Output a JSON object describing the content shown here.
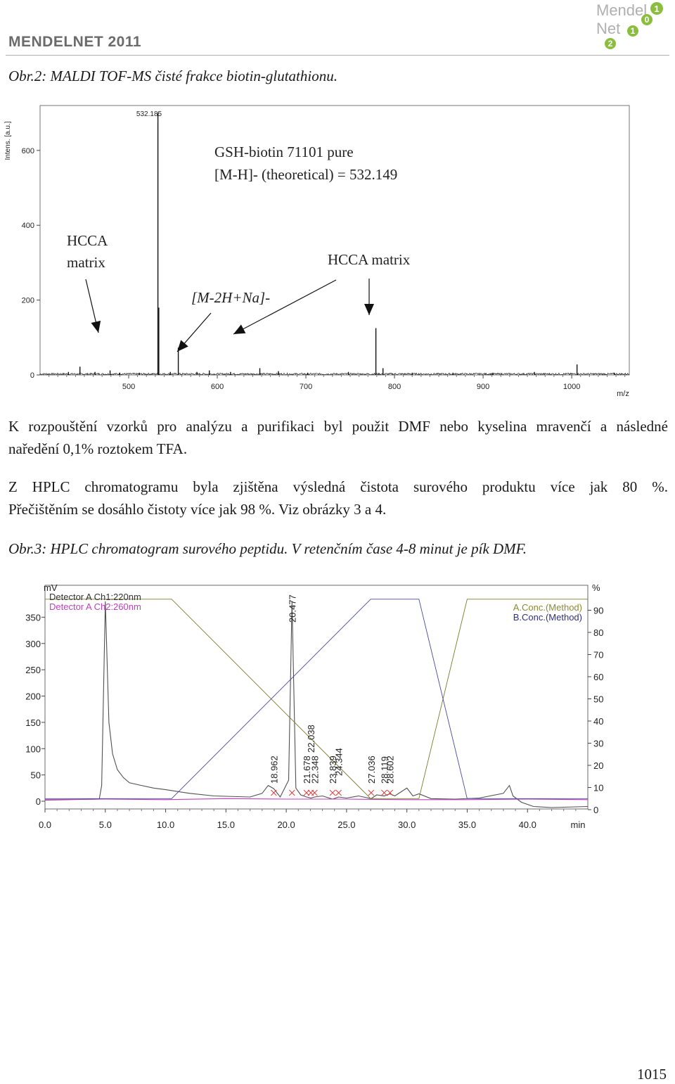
{
  "header": {
    "journal_title": "MENDELNET 2011",
    "logo_text_top": "Mendel",
    "logo_text_bottom": "Net",
    "logo_digits": [
      "1",
      "0",
      "1",
      "2"
    ]
  },
  "figure2": {
    "caption": "Obr.2: MALDI TOF-MS čisté frakce biotin-glutathionu."
  },
  "chart_data": [
    {
      "type": "line",
      "title": "",
      "ylabel": "Intens. [a.u.]",
      "xlabel": "m/z",
      "xlim": [
        400,
        1065
      ],
      "ylim": [
        0,
        720
      ],
      "x_ticks": [
        500,
        600,
        700,
        800,
        900,
        1000
      ],
      "y_ticks": [
        0,
        200,
        400,
        600
      ],
      "grid": false,
      "peak_label": "532.185",
      "annotation_title_1": "GSH-biotin 71101 pure",
      "annotation_title_2": "[M-H]- (theoretical) = 532.149",
      "annotation_hcca_left_1": "HCCA",
      "annotation_hcca_left_2": "matrix",
      "annotation_hcca_right": "HCCA matrix",
      "annotation_adduct": "[M-2H+Na]-",
      "peaks": [
        {
          "x": 432,
          "y": 8
        },
        {
          "x": 445,
          "y": 22
        },
        {
          "x": 462,
          "y": 8
        },
        {
          "x": 479,
          "y": 12
        },
        {
          "x": 490,
          "y": 6
        },
        {
          "x": 512,
          "y": 6
        },
        {
          "x": 533,
          "y": 700
        },
        {
          "x": 534,
          "y": 180
        },
        {
          "x": 547,
          "y": 8
        },
        {
          "x": 556,
          "y": 73
        },
        {
          "x": 577,
          "y": 8
        },
        {
          "x": 591,
          "y": 12
        },
        {
          "x": 615,
          "y": 8
        },
        {
          "x": 648,
          "y": 18
        },
        {
          "x": 669,
          "y": 10
        },
        {
          "x": 702,
          "y": 6
        },
        {
          "x": 748,
          "y": 8
        },
        {
          "x": 779,
          "y": 125
        },
        {
          "x": 787,
          "y": 18
        },
        {
          "x": 820,
          "y": 6
        },
        {
          "x": 866,
          "y": 6
        },
        {
          "x": 911,
          "y": 6
        },
        {
          "x": 958,
          "y": 8
        },
        {
          "x": 1006,
          "y": 28
        },
        {
          "x": 1048,
          "y": 6
        }
      ]
    },
    {
      "type": "line",
      "title": "",
      "ylabel_left": "mV",
      "ylabel_right": "%",
      "xlabel": "min",
      "xlim": [
        0,
        45
      ],
      "ylim_left": [
        -15,
        380
      ],
      "ylim_right": [
        0,
        100
      ],
      "x_ticks": [
        0.0,
        5.0,
        10.0,
        15.0,
        20.0,
        25.0,
        30.0,
        35.0,
        40.0
      ],
      "x_tick_labels": [
        "0.0",
        "5.0",
        "10.0",
        "15.0",
        "20.0",
        "25.0",
        "30.0",
        "35.0",
        "40.0"
      ],
      "y_ticks_left": [
        0,
        50,
        100,
        150,
        200,
        250,
        300,
        350
      ],
      "y_ticks_right": [
        0,
        10,
        20,
        30,
        40,
        50,
        60,
        70,
        80,
        90
      ],
      "grid": false,
      "legend_left": [
        "Detector A Ch1:220nm",
        "Detector A Ch2:260nm"
      ],
      "legend_right": [
        "A.Conc.(Method)",
        "B.Conc.(Method)"
      ],
      "series": [
        {
          "name": "Detector A Ch1:220nm",
          "color": "#505050",
          "x": [
            0,
            4.5,
            4.7,
            5.0,
            5.3,
            5.6,
            6.0,
            6.5,
            7.0,
            8.0,
            9.0,
            10.0,
            12.0,
            14.0,
            17.0,
            18.0,
            18.5,
            18.962,
            19.5,
            20.2,
            20.477,
            20.8,
            21.2,
            21.678,
            22.038,
            22.348,
            23.0,
            23.839,
            24.344,
            25.0,
            26.0,
            27.036,
            27.5,
            28.119,
            28.6,
            29.0,
            30.0,
            30.5,
            31.0,
            32.0,
            34.0,
            36.0,
            38.0,
            38.5,
            38.8,
            39.5,
            40.5,
            42.0,
            45.0
          ],
          "y": [
            2,
            4,
            30,
            380,
            150,
            90,
            60,
            45,
            35,
            30,
            25,
            22,
            15,
            10,
            8,
            15,
            30,
            24,
            8,
            40,
            380,
            25,
            12,
            8,
            6,
            8,
            10,
            4,
            8,
            6,
            10,
            5,
            12,
            10,
            14,
            10,
            25,
            10,
            14,
            5,
            4,
            6,
            15,
            30,
            10,
            -2,
            -10,
            -12,
            -10
          ]
        },
        {
          "name": "Detector A Ch2:260nm",
          "color": "#c040c0",
          "x": [
            0,
            5,
            10,
            15,
            20,
            25,
            30,
            35,
            40,
            45
          ],
          "y": [
            3,
            4,
            3,
            5,
            4,
            4,
            3,
            3,
            4,
            3
          ]
        },
        {
          "name": "A.Conc.(Method)",
          "color": "#7a7a30",
          "x": [
            0,
            10.5,
            27.0,
            31.0,
            35.0,
            45.0
          ],
          "y": [
            95,
            95,
            5,
            5,
            95,
            95
          ]
        },
        {
          "name": "B.Conc.(Method)",
          "color": "#4848a0",
          "x": [
            0,
            10.5,
            27.0,
            31.0,
            35.0,
            45.0
          ],
          "y": [
            5,
            5,
            95,
            95,
            5,
            5
          ]
        }
      ],
      "peak_labels": [
        {
          "label": "18.962",
          "x": 18.962
        },
        {
          "label": "20.477",
          "x": 20.477
        },
        {
          "label": "21.678",
          "x": 21.678
        },
        {
          "label": "22.038",
          "x": 22.038
        },
        {
          "label": "22.348",
          "x": 22.348
        },
        {
          "label": "23.839",
          "x": 23.839
        },
        {
          "label": "24.344",
          "x": 24.344
        },
        {
          "label": "27.036",
          "x": 27.036
        },
        {
          "label": "28.119",
          "x": 28.119
        },
        {
          "label": "28.602",
          "x": 28.602
        }
      ]
    }
  ],
  "paragraphs": {
    "p1_line1": "K rozpouštění vzorků pro analýzu a purifikaci byl použit DMF nebo kyselina mravenčí a následné",
    "p1_line2": "naředění 0,1% roztokem TFA.",
    "p2_line1": "Z HPLC chromatogramu byla zjištěna výsledná čistota surového produktu více jak 80 %.",
    "p2_line2": "Přečištěním se dosáhlo čistoty více jak 98 %. Viz obrázky 3 a 4."
  },
  "figure3": {
    "caption": "Obr.3: HPLC chromatogram surového peptidu. V retenčním čase 4-8 minut  je pík DMF."
  },
  "footer": {
    "page_number": "1015"
  }
}
